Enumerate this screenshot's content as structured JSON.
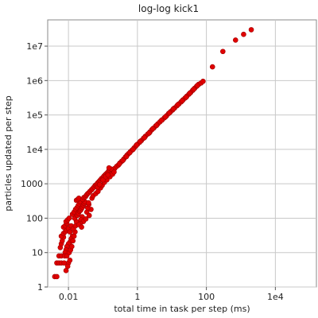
{
  "chart_data": {
    "type": "scatter",
    "title": "log-log kick1",
    "xlabel": "total time in task per step (ms)",
    "ylabel": "particles updated per step",
    "xscale": "log",
    "yscale": "log",
    "xlim": [
      0.0025,
      155000
    ],
    "ylim": [
      1,
      58000000
    ],
    "grid": true,
    "x_ticks": [
      {
        "v": 0.01,
        "label": "0.01"
      },
      {
        "v": 1,
        "label": "1"
      },
      {
        "v": 100,
        "label": "100"
      },
      {
        "v": 10000,
        "label": "1e4"
      }
    ],
    "y_ticks": [
      {
        "v": 1,
        "label": "1"
      },
      {
        "v": 10,
        "label": "10"
      },
      {
        "v": 100,
        "label": "100"
      },
      {
        "v": 1000,
        "label": "1000"
      },
      {
        "v": 10000,
        "label": "1e4"
      },
      {
        "v": 100000,
        "label": "1e5"
      },
      {
        "v": 1000000,
        "label": "1e6"
      },
      {
        "v": 10000000,
        "label": "1e7"
      }
    ],
    "series": [
      {
        "color": "#e00000",
        "points": [
          [
            0.004,
            2
          ],
          [
            0.0046,
            2
          ],
          [
            0.0046,
            5
          ],
          [
            0.0053,
            5
          ],
          [
            0.0062,
            5
          ],
          [
            0.0053,
            8
          ],
          [
            0.0062,
            8
          ],
          [
            0.0058,
            14
          ],
          [
            0.0062,
            18
          ],
          [
            0.0066,
            22
          ],
          [
            0.0072,
            28
          ],
          [
            0.0062,
            30
          ],
          [
            0.0072,
            36
          ],
          [
            0.008,
            40
          ],
          [
            0.0085,
            46
          ],
          [
            0.0072,
            55
          ],
          [
            0.008,
            60
          ],
          [
            0.009,
            70
          ],
          [
            0.0085,
            80
          ],
          [
            0.0095,
            90
          ],
          [
            0.0105,
            100
          ],
          [
            0.01,
            50
          ],
          [
            0.011,
            40
          ],
          [
            0.012,
            60
          ],
          [
            0.013,
            30
          ],
          [
            0.012,
            25
          ],
          [
            0.011,
            20
          ],
          [
            0.01,
            18
          ],
          [
            0.009,
            15
          ],
          [
            0.0085,
            12
          ],
          [
            0.008,
            10
          ],
          [
            0.0078,
            8
          ],
          [
            0.009,
            8
          ],
          [
            0.01,
            5
          ],
          [
            0.011,
            6
          ],
          [
            0.0075,
            5
          ],
          [
            0.0095,
            4
          ],
          [
            0.0085,
            3
          ],
          [
            0.0105,
            10
          ],
          [
            0.0115,
            12
          ],
          [
            0.0125,
            15
          ],
          [
            0.0135,
            22
          ],
          [
            0.0145,
            30
          ],
          [
            0.0155,
            40
          ],
          [
            0.014,
            50
          ],
          [
            0.016,
            60
          ],
          [
            0.017,
            80
          ],
          [
            0.015,
            100
          ],
          [
            0.013,
            130
          ],
          [
            0.0145,
            150
          ],
          [
            0.016,
            180
          ],
          [
            0.0175,
            200
          ],
          [
            0.019,
            230
          ],
          [
            0.0205,
            260
          ],
          [
            0.022,
            300
          ],
          [
            0.018,
            120
          ],
          [
            0.0195,
            140
          ],
          [
            0.021,
            160
          ],
          [
            0.0225,
            170
          ],
          [
            0.024,
            190
          ],
          [
            0.0255,
            210
          ],
          [
            0.027,
            240
          ],
          [
            0.0285,
            270
          ],
          [
            0.03,
            300
          ],
          [
            0.017,
            330
          ],
          [
            0.0185,
            350
          ],
          [
            0.02,
            380
          ],
          [
            0.026,
            350
          ],
          [
            0.028,
            400
          ],
          [
            0.031,
            420
          ],
          [
            0.033,
            460
          ],
          [
            0.035,
            500
          ],
          [
            0.038,
            540
          ],
          [
            0.042,
            600
          ],
          [
            0.046,
            660
          ],
          [
            0.05,
            720
          ],
          [
            0.055,
            800
          ],
          [
            0.06,
            900
          ],
          [
            0.065,
            950
          ],
          [
            0.07,
            1050
          ],
          [
            0.076,
            1150
          ],
          [
            0.082,
            1250
          ],
          [
            0.09,
            1400
          ],
          [
            0.098,
            1500
          ],
          [
            0.106,
            1650
          ],
          [
            0.115,
            1800
          ],
          [
            0.125,
            1950
          ],
          [
            0.135,
            2100
          ],
          [
            0.145,
            2300
          ],
          [
            0.155,
            2500
          ],
          [
            0.034,
            150
          ],
          [
            0.04,
            120
          ],
          [
            0.045,
            180
          ],
          [
            0.036,
            200
          ],
          [
            0.039,
            250
          ],
          [
            0.025,
            110
          ],
          [
            0.023,
            90
          ],
          [
            0.027,
            80
          ],
          [
            0.032,
            95
          ],
          [
            0.022,
            70
          ],
          [
            0.02,
            65
          ],
          [
            0.024,
            55
          ],
          [
            0.038,
            280
          ],
          [
            0.048,
            380
          ],
          [
            0.052,
            450
          ],
          [
            0.062,
            520
          ],
          [
            0.072,
            600
          ],
          [
            0.085,
            760
          ],
          [
            0.095,
            900
          ],
          [
            0.11,
            1100
          ],
          [
            0.13,
            1300
          ],
          [
            0.16,
            1600
          ],
          [
            0.18,
            2000
          ],
          [
            0.2,
            2400
          ],
          [
            0.22,
            2800
          ],
          [
            0.25,
            3200
          ],
          [
            0.19,
            1900
          ],
          [
            0.21,
            2200
          ],
          [
            0.17,
            2700
          ],
          [
            0.15,
            2900
          ],
          [
            0.28,
            3500
          ],
          [
            0.31,
            4000
          ],
          [
            0.35,
            4500
          ],
          [
            0.4,
            5200
          ],
          [
            0.45,
            6000
          ],
          [
            0.5,
            6800
          ],
          [
            0.55,
            7500
          ],
          [
            0.62,
            8500
          ],
          [
            0.7,
            9500
          ],
          [
            0.8,
            11000
          ],
          [
            0.9,
            12500
          ],
          [
            1.0,
            14000
          ],
          [
            1.15,
            16000
          ],
          [
            1.3,
            18000
          ],
          [
            1.5,
            21000
          ],
          [
            1.7,
            24000
          ],
          [
            2.0,
            28000
          ],
          [
            2.3,
            32000
          ],
          [
            2.6,
            37000
          ],
          [
            3.0,
            42000
          ],
          [
            3.4,
            48000
          ],
          [
            3.9,
            55000
          ],
          [
            4.5,
            63000
          ],
          [
            5.2,
            72000
          ],
          [
            6.0,
            82000
          ],
          [
            7.0,
            95000
          ],
          [
            8.0,
            110000
          ],
          [
            9.2,
            125000
          ],
          [
            10.5,
            140000
          ],
          [
            12.0,
            160000
          ],
          [
            14.0,
            185000
          ],
          [
            16.0,
            210000
          ],
          [
            18.5,
            240000
          ],
          [
            21.0,
            275000
          ],
          [
            24.0,
            310000
          ],
          [
            27.0,
            350000
          ],
          [
            31.0,
            400000
          ],
          [
            35.0,
            450000
          ],
          [
            40.0,
            520000
          ],
          [
            46.0,
            600000
          ],
          [
            52.0,
            680000
          ],
          [
            60.0,
            780000
          ],
          [
            0.07,
            800
          ],
          [
            0.08,
            950
          ],
          [
            0.1,
            1300
          ],
          [
            0.12,
            1600
          ],
          [
            0.14,
            1800
          ],
          [
            0.3,
            3800
          ],
          [
            0.38,
            4800
          ],
          [
            0.48,
            6200
          ],
          [
            0.6,
            8000
          ],
          [
            0.75,
            10000
          ],
          [
            0.95,
            13500
          ],
          [
            1.2,
            17000
          ],
          [
            1.6,
            22000
          ],
          [
            2.2,
            30000
          ],
          [
            2.8,
            40000
          ],
          [
            3.6,
            50000
          ],
          [
            5.0,
            70000
          ],
          [
            6.5,
            88000
          ],
          [
            8.5,
            115000
          ],
          [
            11.0,
            150000
          ],
          [
            15.0,
            200000
          ],
          [
            20.0,
            260000
          ],
          [
            26.0,
            330000
          ],
          [
            33.0,
            430000
          ],
          [
            43.0,
            560000
          ],
          [
            55.0,
            720000
          ],
          [
            70.0,
            850000
          ],
          [
            80.0,
            950000
          ],
          [
            150.0,
            2500000
          ],
          [
            300.0,
            7000000
          ],
          [
            700.0,
            15000000
          ],
          [
            1200.0,
            22000000
          ],
          [
            2000.0,
            30000000
          ]
        ]
      }
    ]
  }
}
